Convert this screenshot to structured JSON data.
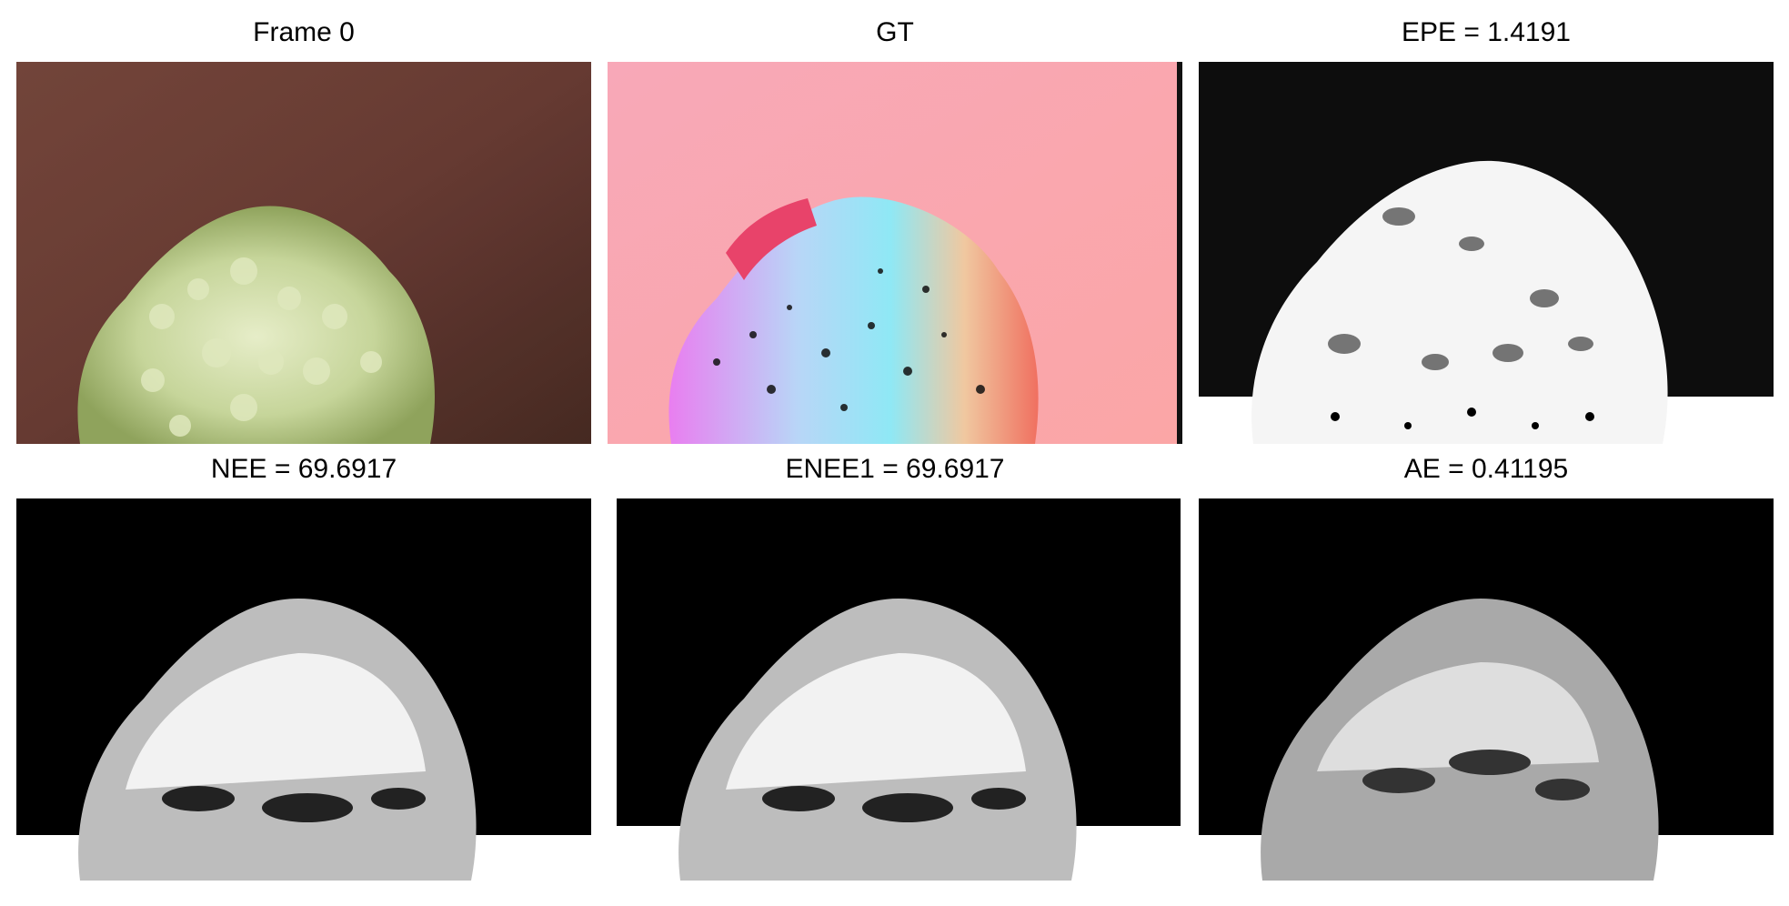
{
  "figure": {
    "panels": [
      {
        "id": "frame0",
        "title": "Frame 0"
      },
      {
        "id": "gt",
        "title": "GT"
      },
      {
        "id": "epe",
        "title": "EPE = 1.4191"
      },
      {
        "id": "nee",
        "title": "NEE = 69.6917"
      },
      {
        "id": "enee1",
        "title": "ENEE1 = 69.6917"
      },
      {
        "id": "ae",
        "title": "AE = 0.41195"
      }
    ]
  }
}
